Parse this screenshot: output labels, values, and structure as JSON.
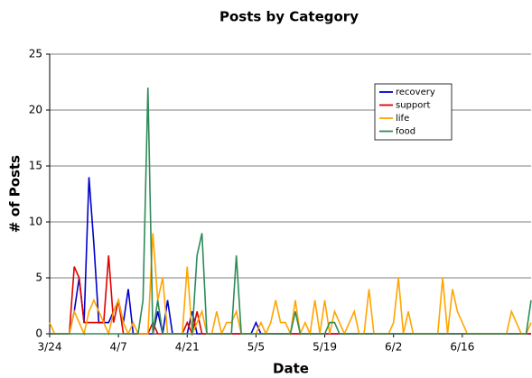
{
  "chart_data": {
    "type": "line",
    "title": "Posts by Category",
    "x_label": "Date",
    "y_label": "# of Posts",
    "categories": [
      "3/24",
      null,
      null,
      null,
      null,
      null,
      null,
      null,
      null,
      null,
      null,
      null,
      null,
      null,
      "4/7",
      null,
      null,
      null,
      null,
      null,
      null,
      null,
      null,
      null,
      null,
      null,
      null,
      null,
      "4/21",
      null,
      null,
      null,
      null,
      null,
      null,
      null,
      null,
      null,
      null,
      null,
      null,
      null,
      "5/5",
      null,
      null,
      null,
      null,
      null,
      null,
      null,
      null,
      null,
      null,
      null,
      null,
      null,
      "5/19",
      null,
      null,
      null,
      null,
      null,
      null,
      null,
      null,
      null,
      null,
      null,
      null,
      null,
      "6/2",
      null,
      null,
      null,
      null,
      null,
      null,
      null,
      null,
      null,
      null,
      null,
      null,
      null,
      "6/16",
      null,
      null,
      null,
      null,
      null,
      null,
      null,
      null,
      null,
      null,
      null,
      null,
      null,
      null
    ],
    "series": [
      {
        "name": "recovery",
        "color": "#0000cc",
        "values": [
          0,
          0,
          0,
          0,
          0,
          2,
          5,
          1,
          14,
          8,
          1,
          1,
          1,
          2,
          3,
          1,
          4,
          0,
          0,
          0,
          0,
          0,
          2,
          0,
          3,
          0,
          0,
          0,
          0,
          2,
          0,
          0,
          0,
          0,
          0,
          0,
          0,
          0,
          0,
          0,
          0,
          0,
          1,
          0,
          0,
          0,
          0,
          0,
          0,
          0,
          0,
          0,
          0,
          0,
          0,
          0,
          0,
          0,
          0,
          0,
          0,
          0,
          0,
          0,
          0,
          0,
          0,
          0,
          0,
          0,
          0,
          0,
          0,
          0,
          0,
          0,
          0,
          0,
          0,
          0,
          0,
          0,
          0,
          0,
          0,
          0,
          0,
          0,
          0,
          0,
          0,
          0,
          0,
          0,
          0,
          0,
          0,
          0,
          0
        ]
      },
      {
        "name": "support",
        "color": "#e00000",
        "values": [
          0,
          0,
          0,
          0,
          0,
          6,
          5,
          1,
          1,
          1,
          1,
          1,
          7,
          1,
          3,
          0,
          0,
          0,
          0,
          0,
          0,
          1,
          0,
          0,
          0,
          0,
          0,
          0,
          1,
          0,
          2,
          0,
          0,
          0,
          0,
          0,
          0,
          0,
          0,
          0,
          0,
          0,
          0,
          0,
          0,
          0,
          0,
          0,
          0,
          0,
          0,
          0,
          0,
          0,
          0,
          0,
          0,
          0,
          0,
          0,
          0,
          0,
          0,
          0,
          0,
          0,
          0,
          0,
          0,
          0,
          0,
          0,
          0,
          0,
          0,
          0,
          0,
          0,
          0,
          0,
          0,
          0,
          0,
          0,
          0,
          0,
          0,
          0,
          0,
          0,
          0,
          0,
          0,
          0,
          0,
          0,
          0,
          0,
          0
        ]
      },
      {
        "name": "life",
        "color": "#ffa500",
        "values": [
          1,
          0,
          0,
          0,
          0,
          2,
          1,
          0,
          2,
          3,
          2,
          1,
          0,
          2,
          3,
          1,
          0,
          1,
          0,
          0,
          0,
          9,
          3,
          5,
          0,
          0,
          0,
          0,
          6,
          0,
          1,
          2,
          0,
          0,
          2,
          0,
          1,
          1,
          2,
          0,
          0,
          0,
          0,
          1,
          0,
          1,
          3,
          1,
          1,
          0,
          3,
          0,
          1,
          0,
          3,
          0,
          3,
          0,
          2,
          1,
          0,
          1,
          2,
          0,
          0,
          4,
          0,
          0,
          0,
          0,
          1,
          5,
          0,
          2,
          0,
          0,
          0,
          0,
          0,
          0,
          5,
          0,
          4,
          2,
          1,
          0,
          0,
          0,
          0,
          0,
          0,
          0,
          0,
          0,
          2,
          1,
          0,
          0,
          1
        ]
      },
      {
        "name": "food",
        "color": "#2e8b57",
        "values": [
          0,
          0,
          0,
          0,
          0,
          0,
          0,
          0,
          0,
          0,
          0,
          0,
          0,
          0,
          0,
          0,
          0,
          0,
          0,
          3,
          22,
          0,
          3,
          0,
          0,
          0,
          0,
          0,
          0,
          0,
          7,
          9,
          0,
          0,
          0,
          0,
          0,
          0,
          7,
          0,
          0,
          0,
          0,
          0,
          0,
          0,
          0,
          0,
          0,
          0,
          2,
          0,
          0,
          0,
          0,
          0,
          0,
          1,
          1,
          0,
          0,
          0,
          0,
          0,
          0,
          0,
          0,
          0,
          0,
          0,
          0,
          0,
          0,
          0,
          0,
          0,
          0,
          0,
          0,
          0,
          0,
          0,
          0,
          0,
          0,
          0,
          0,
          0,
          0,
          0,
          0,
          0,
          0,
          0,
          0,
          0,
          0,
          0,
          3
        ]
      }
    ],
    "ylim": [
      0,
      25
    ],
    "yticks": [
      0,
      5,
      10,
      15,
      20,
      25
    ],
    "grid": true,
    "legend": "upper right"
  }
}
